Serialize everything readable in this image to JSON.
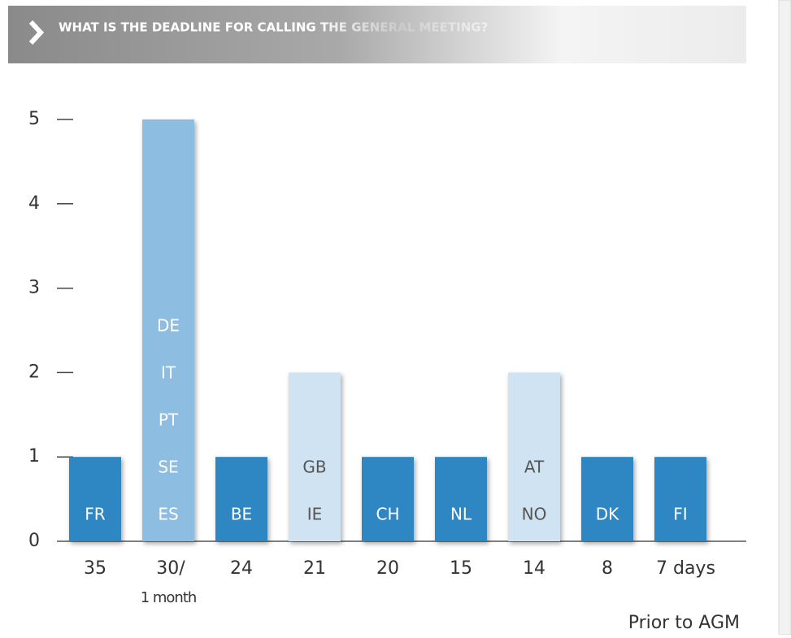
{
  "chart_data": {
    "type": "bar",
    "title": "WHAT IS THE DEADLINE FOR CALLING THE GENERAL MEETING?",
    "x_label": "Prior to AGM",
    "categories": [
      [
        "35"
      ],
      [
        "30/",
        "1 month"
      ],
      [
        "24"
      ],
      [
        "21"
      ],
      [
        "20"
      ],
      [
        "15"
      ],
      [
        "14"
      ],
      [
        "8"
      ],
      [
        "7 days"
      ]
    ],
    "values": [
      1,
      5,
      1,
      2,
      1,
      1,
      2,
      1,
      1
    ],
    "colors": [
      "#2f86c2",
      "#8ebde2",
      "#2f86c2",
      "#cfe3f2",
      "#2f86c2",
      "#2f86c2",
      "#cfe3f2",
      "#2f86c2",
      "#2f86c2"
    ],
    "bar_labels": [
      [
        "FR"
      ],
      [
        "DE",
        "IT",
        "PT",
        "SE",
        "ES"
      ],
      [
        "BE"
      ],
      [
        "GB",
        "IE"
      ],
      [
        "CH"
      ],
      [
        "NL"
      ],
      [
        "AT",
        "NO"
      ],
      [
        "DK"
      ],
      [
        "FI"
      ]
    ],
    "ylim": [
      0,
      5
    ],
    "yticks": [
      0,
      1,
      2,
      3,
      4,
      5
    ]
  }
}
